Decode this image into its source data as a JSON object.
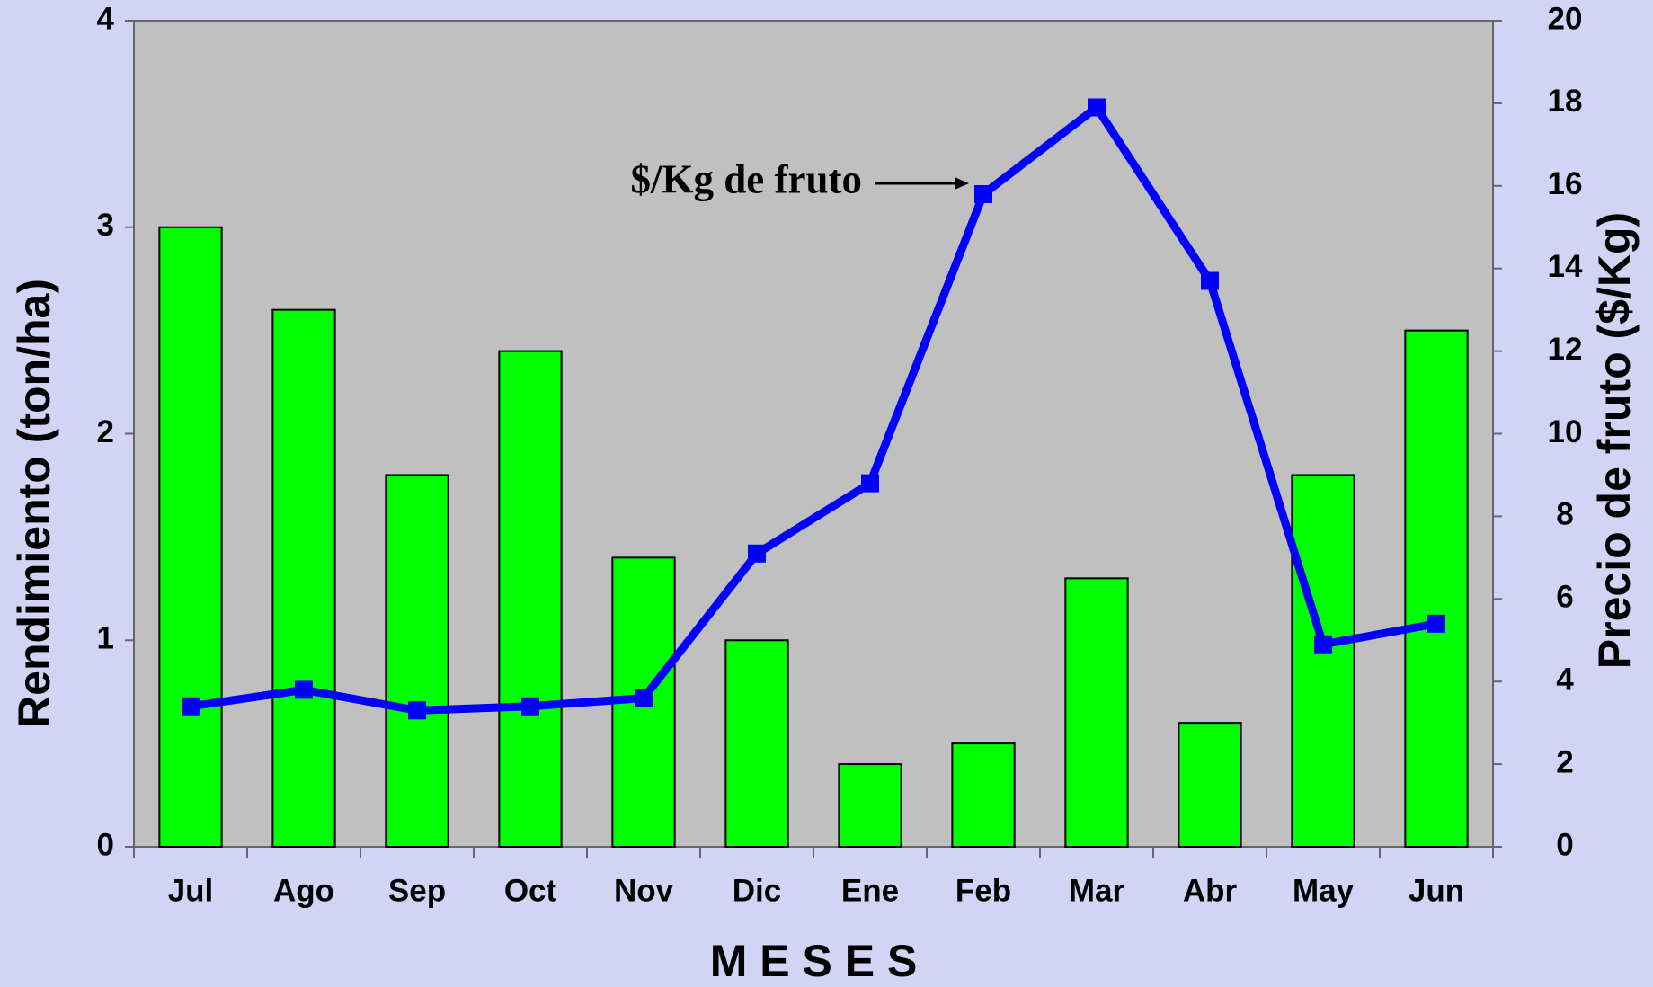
{
  "chart_data": {
    "type": "bar-line",
    "categories": [
      "Jul",
      "Ago",
      "Sep",
      "Oct",
      "Nov",
      "Dic",
      "Ene",
      "Feb",
      "Mar",
      "Abr",
      "May",
      "Jun"
    ],
    "series": [
      {
        "name": "Rendimiento",
        "type": "bar",
        "color": "#00ff00",
        "axis": "y",
        "values": [
          3.0,
          2.6,
          1.8,
          2.4,
          1.4,
          1.0,
          0.4,
          0.5,
          1.3,
          0.6,
          1.8,
          2.5
        ]
      },
      {
        "name": "$/Kg de fruto",
        "type": "line",
        "color": "#0000ff",
        "axis": "y2",
        "values": [
          3.4,
          3.8,
          3.3,
          3.4,
          3.6,
          7.1,
          8.8,
          15.8,
          17.9,
          13.7,
          4.9,
          5.4
        ]
      }
    ],
    "annotations": [
      {
        "text": "$/Kg de fruto",
        "series": 1,
        "point": 7
      }
    ],
    "xlabel": "M E S E S",
    "ylabel": "Rendimiento (ton/ha)",
    "y2label": "Precio de fruto ($/Kg)",
    "ylim": [
      0,
      4
    ],
    "yticks": [
      0,
      1,
      2,
      3,
      4
    ],
    "y2lim": [
      0,
      20
    ],
    "y2ticks": [
      0,
      2,
      4,
      6,
      8,
      10,
      12,
      14,
      16,
      18,
      20
    ],
    "plot_background": "#c0c0c0"
  }
}
